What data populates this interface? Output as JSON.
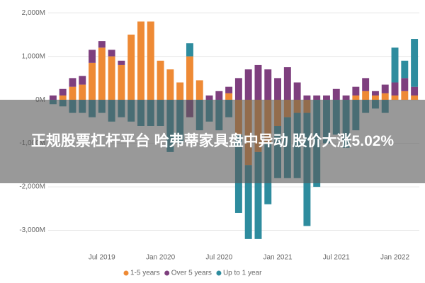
{
  "chart_data": {
    "type": "bar",
    "stacked": true,
    "categories": [
      null,
      null,
      null,
      null,
      null,
      "Jul 2019",
      null,
      null,
      null,
      null,
      null,
      "Jan 2020",
      null,
      null,
      null,
      null,
      null,
      "Jul 2020",
      null,
      null,
      null,
      null,
      null,
      "Jan 2021",
      null,
      null,
      null,
      null,
      null,
      "Jul 2021",
      null,
      null,
      null,
      null,
      null,
      "Jan 2022",
      null,
      null
    ],
    "series": [
      {
        "name": "1-5 years",
        "color": "#ee8a35",
        "values": [
          0,
          100,
          300,
          350,
          850,
          1200,
          1000,
          800,
          1500,
          1800,
          1800,
          900,
          700,
          400,
          1000,
          450,
          0,
          0,
          150,
          -800,
          -1500,
          -1200,
          -1000,
          -600,
          -400,
          -300,
          -300,
          0,
          0,
          0,
          0,
          100,
          200,
          100,
          150,
          100,
          200,
          100
        ]
      },
      {
        "name": "Over 5 years",
        "color": "#7e3f7e",
        "values": [
          100,
          150,
          200,
          200,
          300,
          150,
          150,
          100,
          0,
          0,
          0,
          0,
          0,
          0,
          -400,
          0,
          100,
          200,
          150,
          500,
          700,
          800,
          700,
          500,
          750,
          400,
          100,
          100,
          100,
          250,
          100,
          200,
          300,
          100,
          200,
          300,
          300,
          200
        ]
      },
      {
        "name": "Up to 1 year",
        "color": "#2e8c9e",
        "values": [
          -100,
          -150,
          -300,
          -300,
          -400,
          -300,
          -500,
          -400,
          -500,
          -600,
          -600,
          -600,
          -1200,
          -1000,
          300,
          -700,
          -500,
          -700,
          -400,
          -1800,
          -1700,
          -2000,
          -1400,
          -1200,
          -1400,
          -1500,
          -2600,
          -2000,
          -1000,
          -800,
          -1100,
          -700,
          -300,
          -200,
          -300,
          800,
          400,
          1100
        ]
      }
    ],
    "ylim": [
      -3300,
      2100
    ],
    "yticks": [
      {
        "value": -3000,
        "label": "-3,000M"
      },
      {
        "value": -2000,
        "label": "-2,000M"
      },
      {
        "value": -1000,
        "label": "-1,000M"
      },
      {
        "value": 0,
        "label": "0M"
      },
      {
        "value": 1000,
        "label": "1,000M"
      },
      {
        "value": 2000,
        "label": "2,000M"
      }
    ],
    "grid": true,
    "legend": "bottom"
  },
  "overlay": {
    "headline": "正规股票杠杆平台 哈弗蒂家具盘中异动 股价大涨5.02%"
  }
}
